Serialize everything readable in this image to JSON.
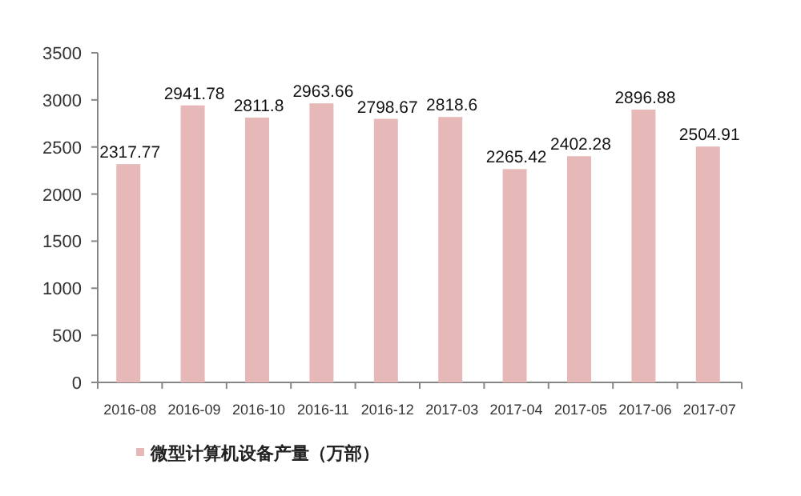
{
  "chart_data": {
    "type": "bar",
    "categories": [
      "2016-08",
      "2016-09",
      "2016-10",
      "2016-11",
      "2016-12",
      "2017-03",
      "2017-04",
      "2017-05",
      "2017-06",
      "2017-07"
    ],
    "series": [
      {
        "name": "微型计算机设备产量（万部）",
        "color": "#e6b9b8",
        "values": [
          2317.77,
          2941.78,
          2811.8,
          2963.66,
          2798.67,
          2818.6,
          2265.42,
          2402.28,
          2896.88,
          2504.91
        ]
      }
    ],
    "ylim": [
      0,
      3500
    ],
    "yticks": [
      0,
      500,
      1000,
      1500,
      2000,
      2500,
      3000,
      3500
    ],
    "grid": false,
    "legend": "bottom",
    "data_labels": true
  }
}
